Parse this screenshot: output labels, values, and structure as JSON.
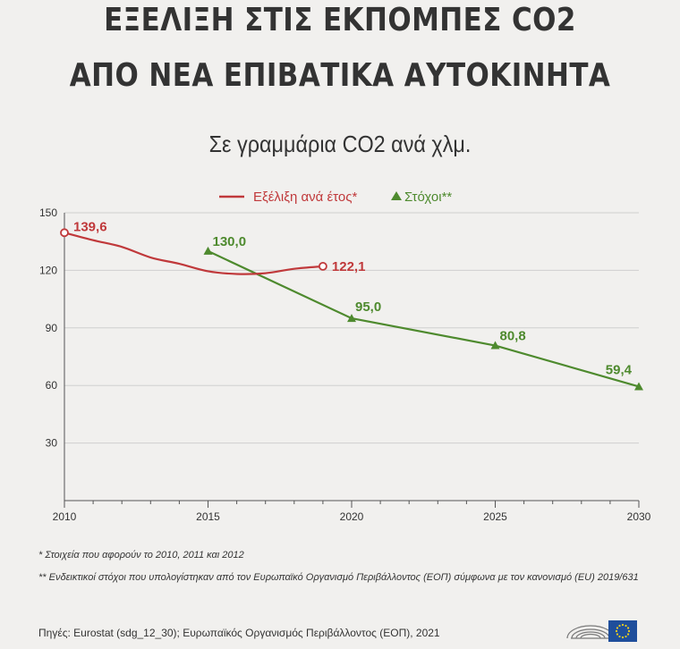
{
  "header": {
    "title_line1": "ΕΞΕΛΙΞΗ ΣΤΙΣ ΕΚΠΟΜΠΕΣ CO2",
    "title_line2": "ΑΠΟ ΝΕΑ ΕΠΙΒΑΤΙΚΑ ΑΥΤΟΚΙΝΗΤΑ",
    "subtitle": "Σε γραμμάρια CO2 ανά χλμ."
  },
  "chart_data": {
    "type": "line",
    "xlim": [
      2010,
      2030
    ],
    "ylim": [
      0,
      150
    ],
    "x_ticks": [
      2010,
      2015,
      2020,
      2025,
      2030
    ],
    "y_ticks": [
      30,
      60,
      90,
      120,
      150
    ],
    "grid": "horizontal",
    "legend_position": "top-center",
    "series": [
      {
        "name": "Εξέλιξη ανά έτος*",
        "color": "#c0393b",
        "marker": "open-circle",
        "points": [
          {
            "x": 2010,
            "y": 139.6
          },
          {
            "x": 2011,
            "y": 135.7
          },
          {
            "x": 2012,
            "y": 132.2
          },
          {
            "x": 2013,
            "y": 126.7
          },
          {
            "x": 2014,
            "y": 123.4
          },
          {
            "x": 2015,
            "y": 119.5
          },
          {
            "x": 2016,
            "y": 118.1
          },
          {
            "x": 2017,
            "y": 118.5
          },
          {
            "x": 2018,
            "y": 120.8
          },
          {
            "x": 2019,
            "y": 122.1
          }
        ],
        "labels": [
          {
            "x": 2010,
            "y": 139.6,
            "text": "139,6"
          },
          {
            "x": 2019,
            "y": 122.1,
            "text": "122,1"
          }
        ]
      },
      {
        "name": "Στόχοι**",
        "color": "#4e8a2e",
        "marker": "triangle",
        "points": [
          {
            "x": 2015,
            "y": 130.0
          },
          {
            "x": 2020,
            "y": 95.0
          },
          {
            "x": 2025,
            "y": 80.8
          },
          {
            "x": 2030,
            "y": 59.4
          }
        ],
        "labels": [
          {
            "x": 2015,
            "y": 130.0,
            "text": "130,0"
          },
          {
            "x": 2020,
            "y": 95.0,
            "text": "95,0"
          },
          {
            "x": 2025,
            "y": 80.8,
            "text": "80,8"
          },
          {
            "x": 2030,
            "y": 59.4,
            "text": "59,4"
          }
        ]
      }
    ]
  },
  "footnotes": {
    "note1": "* Στοιχεία που αφορούν το 2010, 2011 και 2012",
    "note2": "** Ενδεικτικοί στόχοι που υπολογίστηκαν από τον Ευρωπαϊκό Οργανισμό Περιβάλλοντος (ΕΟΠ) σύμφωνα με τον κανονισμό (EU) 2019/631"
  },
  "source": "Πηγές: Eurostat (sdg_12_30); Ευρωπαϊκός Οργανισμός Περιβάλλοντος (ΕΟΠ), 2021",
  "colors": {
    "background": "#f1f0ee",
    "grid": "#cfcfcf",
    "axis": "#555555",
    "eu_blue": "#1f4e9b",
    "eu_yellow": "#f6d11a"
  }
}
